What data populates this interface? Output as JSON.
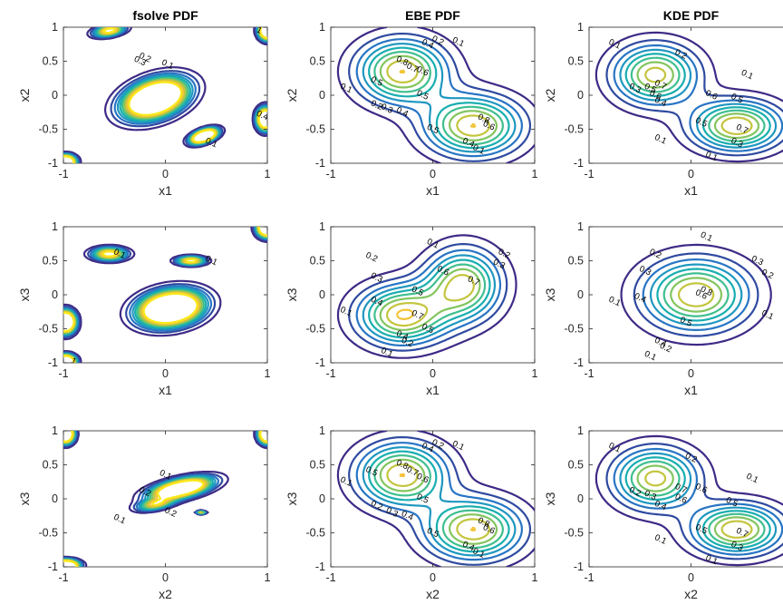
{
  "colors": {
    "levels": [
      "#3e2a86",
      "#2f4aa0",
      "#2875c4",
      "#1f97c0",
      "#18aeb0",
      "#3fbf8f",
      "#83c55f",
      "#c4c53e",
      "#f3c43a",
      "#f9e91a"
    ]
  },
  "chart_data": [
    {
      "type": "contour",
      "title": "fsolve PDF",
      "xlabel": "x1",
      "ylabel": "x2",
      "xlim": [
        -1,
        1
      ],
      "ylim": [
        -1,
        1
      ],
      "xticks": [
        "-1",
        "0",
        "1"
      ],
      "yticks": [
        "1",
        "0.5",
        "0",
        "-0.5",
        "-1"
      ],
      "sources": [
        {
          "x": -0.1,
          "y": -0.05,
          "sx": 0.22,
          "sy": 0.15,
          "a": 2.4,
          "rot": 0.7
        },
        {
          "x": -0.55,
          "y": 0.95,
          "sx": 0.1,
          "sy": 0.05,
          "a": 1.2,
          "rot": 0.3
        },
        {
          "x": 0.38,
          "y": -0.6,
          "sx": 0.09,
          "sy": 0.05,
          "a": 2.5,
          "rot": 0.6
        },
        {
          "x": 0.98,
          "y": -0.35,
          "sx": 0.05,
          "sy": 0.1,
          "a": 2.2,
          "rot": 0
        },
        {
          "x": -0.98,
          "y": -0.98,
          "sx": 0.06,
          "sy": 0.06,
          "a": 2.5,
          "rot": 0
        },
        {
          "x": 1.0,
          "y": 0.95,
          "sx": 0.05,
          "sy": 0.08,
          "a": 2.5,
          "rot": 0
        }
      ],
      "levels": [
        0.1,
        0.2,
        0.3,
        0.4,
        0.5,
        0.6,
        0.7,
        0.8,
        0.9,
        1
      ],
      "contour_labels": [
        {
          "t": "0.1",
          "x": 0.02,
          "y": 0.45
        },
        {
          "t": "0.2",
          "x": -0.2,
          "y": 0.55
        },
        {
          "t": "0.3",
          "x": -0.25,
          "y": 0.5
        },
        {
          "t": "1",
          "x": 0.92,
          "y": 0.95
        },
        {
          "t": "0.1",
          "x": 0.45,
          "y": -0.7
        },
        {
          "t": "0.4",
          "x": 0.95,
          "y": -0.3
        }
      ]
    },
    {
      "type": "contour",
      "title": "EBE PDF",
      "xlabel": "x1",
      "ylabel": "x2",
      "xlim": [
        -1,
        1
      ],
      "ylim": [
        -1,
        1
      ],
      "xticks": [
        "-1",
        "0",
        "1"
      ],
      "yticks": [
        "1",
        "0.5",
        "0",
        "-0.5",
        "-1"
      ],
      "sources": [
        {
          "x": -0.3,
          "y": 0.35,
          "sx": 0.3,
          "sy": 0.32,
          "a": 0.9,
          "rot": 0
        },
        {
          "x": 0.4,
          "y": -0.45,
          "sx": 0.32,
          "sy": 0.3,
          "a": 0.9,
          "rot": 0
        }
      ],
      "levels": [
        0.1,
        0.2,
        0.3,
        0.4,
        0.5,
        0.6,
        0.7,
        0.8,
        0.9
      ],
      "contour_labels": [
        {
          "t": "0.1",
          "x": -0.85,
          "y": 0.1
        },
        {
          "t": "0.2",
          "x": -0.55,
          "y": -0.15
        },
        {
          "t": "0.3",
          "x": -0.45,
          "y": -0.2
        },
        {
          "t": "0.4",
          "x": -0.3,
          "y": -0.25
        },
        {
          "t": "0.5",
          "x": -0.1,
          "y": 0.0
        },
        {
          "t": "0.6",
          "x": -0.1,
          "y": 0.35
        },
        {
          "t": "0.7",
          "x": -0.2,
          "y": 0.4
        },
        {
          "t": "0.8",
          "x": -0.3,
          "y": 0.5
        },
        {
          "t": "0.5",
          "x": -0.55,
          "y": 0.2
        },
        {
          "t": "0.4",
          "x": -0.05,
          "y": 0.75
        },
        {
          "t": "0.2",
          "x": 0.05,
          "y": 0.8
        },
        {
          "t": "0.1",
          "x": 0.25,
          "y": 0.78
        },
        {
          "t": "0.5",
          "x": 0.0,
          "y": -0.5
        },
        {
          "t": "0.8",
          "x": 0.5,
          "y": -0.35
        },
        {
          "t": "0.6",
          "x": 0.55,
          "y": -0.45
        },
        {
          "t": "0.4",
          "x": 0.35,
          "y": -0.7
        },
        {
          "t": "0.1",
          "x": 0.45,
          "y": -0.8
        }
      ]
    },
    {
      "type": "contour",
      "title": "KDE PDF",
      "xlabel": "x1",
      "ylabel": "x2",
      "xlim": [
        -1,
        1
      ],
      "ylim": [
        -1,
        1
      ],
      "xticks": [
        "-1",
        "0",
        "1"
      ],
      "yticks": [
        "1",
        "0.5",
        "0",
        "-0.5",
        "-1"
      ],
      "sources": [
        {
          "x": -0.35,
          "y": 0.3,
          "sx": 0.28,
          "sy": 0.3,
          "a": 0.85,
          "rot": 0
        },
        {
          "x": 0.45,
          "y": -0.45,
          "sx": 0.3,
          "sy": 0.25,
          "a": 0.9,
          "rot": 0
        }
      ],
      "levels": [
        0.1,
        0.2,
        0.3,
        0.4,
        0.5,
        0.6,
        0.7,
        0.8,
        0.9
      ],
      "contour_labels": [
        {
          "t": "0.1",
          "x": -0.75,
          "y": 0.75
        },
        {
          "t": "0.3",
          "x": -0.55,
          "y": 0.1
        },
        {
          "t": "0.5",
          "x": -0.4,
          "y": 0.1
        },
        {
          "t": "0.4",
          "x": -0.3,
          "y": -0.1
        },
        {
          "t": "0.6",
          "x": -0.35,
          "y": 0.0
        },
        {
          "t": "0.7",
          "x": -0.3,
          "y": 0.15
        },
        {
          "t": "0.6",
          "x": 0.2,
          "y": 0.0
        },
        {
          "t": "0.5",
          "x": 0.45,
          "y": -0.05
        },
        {
          "t": "0.5",
          "x": 0.1,
          "y": -0.4
        },
        {
          "t": "0.1",
          "x": 0.55,
          "y": 0.3
        },
        {
          "t": "0.2",
          "x": -0.1,
          "y": 0.6
        },
        {
          "t": "0.1",
          "x": -0.3,
          "y": -0.65
        },
        {
          "t": "0.7",
          "x": 0.5,
          "y": -0.5
        },
        {
          "t": "0.3",
          "x": 0.45,
          "y": -0.7
        },
        {
          "t": "0.1",
          "x": 0.2,
          "y": -0.9
        }
      ]
    },
    {
      "type": "contour",
      "title": "",
      "xlabel": "x1",
      "ylabel": "x3",
      "xlim": [
        -1,
        1
      ],
      "ylim": [
        -1,
        1
      ],
      "xticks": [
        "-1",
        "0",
        "1"
      ],
      "yticks": [
        "1",
        "0.5",
        "0",
        "-0.5",
        "-1"
      ],
      "sources": [
        {
          "x": 0.05,
          "y": -0.2,
          "sx": 0.2,
          "sy": 0.15,
          "a": 2.5,
          "rot": 0.4
        },
        {
          "x": -0.55,
          "y": 0.6,
          "sx": 0.11,
          "sy": 0.06,
          "a": 1.2,
          "rot": 0
        },
        {
          "x": 0.25,
          "y": 0.5,
          "sx": 0.09,
          "sy": 0.04,
          "a": 1.2,
          "rot": 0
        },
        {
          "x": -0.98,
          "y": -0.4,
          "sx": 0.06,
          "sy": 0.1,
          "a": 2.5,
          "rot": 0
        },
        {
          "x": -0.98,
          "y": -0.98,
          "sx": 0.06,
          "sy": 0.06,
          "a": 2.5,
          "rot": 0
        },
        {
          "x": 1.0,
          "y": 0.98,
          "sx": 0.06,
          "sy": 0.08,
          "a": 2.5,
          "rot": 0
        }
      ],
      "levels": [
        0.1,
        0.2,
        0.3,
        0.4,
        0.5,
        0.6,
        0.7,
        0.8,
        0.9,
        1
      ],
      "contour_labels": [
        {
          "t": "0.1",
          "x": -0.45,
          "y": 0.6
        },
        {
          "t": "0.1",
          "x": 0.45,
          "y": 0.5
        },
        {
          "t": "1",
          "x": -0.9,
          "y": -0.98
        }
      ]
    },
    {
      "type": "contour",
      "title": "",
      "xlabel": "x1",
      "ylabel": "x3",
      "xlim": [
        -1,
        1
      ],
      "ylim": [
        -1,
        1
      ],
      "xticks": [
        "-1",
        "0",
        "1"
      ],
      "yticks": [
        "1",
        "0.5",
        "0",
        "-0.5",
        "-1"
      ],
      "sources": [
        {
          "x": -0.3,
          "y": -0.3,
          "sx": 0.3,
          "sy": 0.3,
          "a": 0.9,
          "rot": 0
        },
        {
          "x": 0.3,
          "y": 0.15,
          "sx": 0.25,
          "sy": 0.35,
          "a": 0.85,
          "rot": 0
        }
      ],
      "levels": [
        0.1,
        0.2,
        0.3,
        0.4,
        0.5,
        0.6,
        0.7,
        0.8,
        0.9
      ],
      "contour_labels": [
        {
          "t": "0.1",
          "x": 0.0,
          "y": 0.75
        },
        {
          "t": "0.2",
          "x": -0.6,
          "y": 0.55
        },
        {
          "t": "0.3",
          "x": -0.55,
          "y": 0.25
        },
        {
          "t": "0.4",
          "x": -0.55,
          "y": -0.1
        },
        {
          "t": "0.1",
          "x": -0.85,
          "y": -0.25
        },
        {
          "t": "0.5",
          "x": -0.15,
          "y": 0.05
        },
        {
          "t": "0.6",
          "x": 0.1,
          "y": 0.35
        },
        {
          "t": "0.7",
          "x": 0.4,
          "y": 0.2
        },
        {
          "t": "0.7",
          "x": -0.15,
          "y": -0.3
        },
        {
          "t": "0.5",
          "x": -0.05,
          "y": -0.5
        },
        {
          "t": "0.4",
          "x": -0.3,
          "y": -0.6
        },
        {
          "t": "0.2",
          "x": -0.25,
          "y": -0.7
        },
        {
          "t": "0.1",
          "x": -0.45,
          "y": -0.85
        },
        {
          "t": "0.3",
          "x": 0.65,
          "y": 0.45
        },
        {
          "t": "0.2",
          "x": 0.7,
          "y": 0.6
        }
      ]
    },
    {
      "type": "contour",
      "title": "",
      "xlabel": "x1",
      "ylabel": "x3",
      "xlim": [
        -1,
        1
      ],
      "ylim": [
        -1,
        1
      ],
      "xticks": [
        "-1",
        "0",
        "1"
      ],
      "yticks": [
        "1",
        "0.5",
        "0",
        "-0.5",
        "-1"
      ],
      "sources": [
        {
          "x": 0.05,
          "y": 0.0,
          "sx": 0.35,
          "sy": 0.35,
          "a": 0.9,
          "rot": 0.6
        }
      ],
      "levels": [
        0.1,
        0.2,
        0.3,
        0.4,
        0.5,
        0.6,
        0.7,
        0.8,
        0.9
      ],
      "contour_labels": [
        {
          "t": "0.1",
          "x": 0.15,
          "y": 0.85
        },
        {
          "t": "0.2",
          "x": -0.35,
          "y": 0.6
        },
        {
          "t": "0.3",
          "x": -0.45,
          "y": 0.35
        },
        {
          "t": "0.4",
          "x": -0.5,
          "y": -0.05
        },
        {
          "t": "0.1",
          "x": -0.75,
          "y": -0.1
        },
        {
          "t": "0.5",
          "x": -0.05,
          "y": -0.4
        },
        {
          "t": "0.6",
          "x": 0.1,
          "y": 0.0
        },
        {
          "t": "0.8",
          "x": 0.15,
          "y": 0.05
        },
        {
          "t": "0.4",
          "x": -0.3,
          "y": -0.7
        },
        {
          "t": "0.2",
          "x": -0.25,
          "y": -0.78
        },
        {
          "t": "0.1",
          "x": -0.4,
          "y": -0.9
        },
        {
          "t": "0.3",
          "x": 0.65,
          "y": 0.5
        },
        {
          "t": "0.2",
          "x": 0.75,
          "y": 0.3
        },
        {
          "t": "0.1",
          "x": 0.75,
          "y": -0.3
        }
      ]
    },
    {
      "type": "contour",
      "title": "",
      "xlabel": "x2",
      "ylabel": "x3",
      "xlim": [
        -1,
        1
      ],
      "ylim": [
        -1,
        1
      ],
      "xticks": [
        "-1",
        "0",
        "1"
      ],
      "yticks": [
        "1",
        "0.5",
        "0",
        "-0.5",
        "-1"
      ],
      "sources": [
        {
          "x": 0.15,
          "y": 0.15,
          "sx": 0.2,
          "sy": 0.08,
          "a": 2.0,
          "rot": 0.35
        },
        {
          "x": -0.1,
          "y": -0.08,
          "sx": 0.12,
          "sy": 0.05,
          "a": 0.9,
          "rot": 0.3
        },
        {
          "x": 0.35,
          "y": -0.2,
          "sx": 0.03,
          "sy": 0.015,
          "a": 0.9,
          "rot": 0
        },
        {
          "x": -0.98,
          "y": 0.95,
          "sx": 0.05,
          "sy": 0.08,
          "a": 2.5,
          "rot": 0
        },
        {
          "x": 1.0,
          "y": 0.95,
          "sx": 0.05,
          "sy": 0.08,
          "a": 2.5,
          "rot": 0
        },
        {
          "x": -0.98,
          "y": -0.98,
          "sx": 0.08,
          "sy": 0.05,
          "a": 2.5,
          "rot": 0
        }
      ],
      "levels": [
        0.1,
        0.2,
        0.3,
        0.4,
        0.5,
        0.6,
        0.7,
        0.8,
        0.9,
        1
      ],
      "contour_labels": [
        {
          "t": "0.1",
          "x": 0.0,
          "y": 0.35
        },
        {
          "t": "0.2",
          "x": -0.2,
          "y": 0.1
        },
        {
          "t": "0.1",
          "x": -0.45,
          "y": -0.3
        },
        {
          "t": "0.2",
          "x": 0.05,
          "y": -0.2
        }
      ]
    },
    {
      "type": "contour",
      "title": "",
      "xlabel": "x2",
      "ylabel": "x3",
      "xlim": [
        -1,
        1
      ],
      "ylim": [
        -1,
        1
      ],
      "xticks": [
        "-1",
        "0",
        "1"
      ],
      "yticks": [
        "1",
        "0.5",
        "0",
        "-0.5",
        "-1"
      ],
      "sources": [
        {
          "x": -0.3,
          "y": 0.35,
          "sx": 0.3,
          "sy": 0.32,
          "a": 0.9,
          "rot": 0
        },
        {
          "x": 0.4,
          "y": -0.45,
          "sx": 0.32,
          "sy": 0.3,
          "a": 0.9,
          "rot": 0
        }
      ],
      "levels": [
        0.1,
        0.2,
        0.3,
        0.4,
        0.5,
        0.6,
        0.7,
        0.8,
        0.9
      ],
      "contour_labels": [
        {
          "t": "0.1",
          "x": -0.85,
          "y": 0.25
        },
        {
          "t": "0.5",
          "x": -0.6,
          "y": 0.4
        },
        {
          "t": "0.2",
          "x": -0.55,
          "y": -0.1
        },
        {
          "t": "0.3",
          "x": -0.4,
          "y": -0.2
        },
        {
          "t": "0.4",
          "x": -0.25,
          "y": -0.25
        },
        {
          "t": "0.5",
          "x": -0.1,
          "y": 0.0
        },
        {
          "t": "0.6",
          "x": -0.1,
          "y": 0.3
        },
        {
          "t": "0.7",
          "x": -0.2,
          "y": 0.4
        },
        {
          "t": "0.8",
          "x": -0.3,
          "y": 0.5
        },
        {
          "t": "0.4",
          "x": -0.05,
          "y": 0.75
        },
        {
          "t": "0.2",
          "x": 0.05,
          "y": 0.8
        },
        {
          "t": "0.1",
          "x": 0.25,
          "y": 0.78
        },
        {
          "t": "0.5",
          "x": 0.0,
          "y": -0.5
        },
        {
          "t": "0.8",
          "x": 0.5,
          "y": -0.35
        },
        {
          "t": "0.6",
          "x": 0.55,
          "y": -0.45
        },
        {
          "t": "0.4",
          "x": 0.35,
          "y": -0.7
        },
        {
          "t": "0.1",
          "x": 0.45,
          "y": -0.8
        }
      ]
    },
    {
      "type": "contour",
      "title": "",
      "xlabel": "x2",
      "ylabel": "x3",
      "xlim": [
        -1,
        1
      ],
      "ylim": [
        -1,
        1
      ],
      "xticks": [
        "-1",
        "0",
        "1"
      ],
      "yticks": [
        "1",
        "0.5",
        "0",
        "-0.5",
        "-1"
      ],
      "sources": [
        {
          "x": -0.35,
          "y": 0.3,
          "sx": 0.28,
          "sy": 0.3,
          "a": 0.85,
          "rot": 0
        },
        {
          "x": 0.45,
          "y": -0.45,
          "sx": 0.3,
          "sy": 0.25,
          "a": 0.9,
          "rot": 0
        }
      ],
      "levels": [
        0.1,
        0.2,
        0.3,
        0.4,
        0.5,
        0.6,
        0.7,
        0.8,
        0.9
      ],
      "contour_labels": [
        {
          "t": "0.1",
          "x": -0.75,
          "y": 0.75
        },
        {
          "t": "0.2",
          "x": -0.55,
          "y": 0.1
        },
        {
          "t": "0.3",
          "x": -0.4,
          "y": 0.05
        },
        {
          "t": "0.4",
          "x": -0.3,
          "y": -0.1
        },
        {
          "t": "0.6",
          "x": -0.1,
          "y": 0.0
        },
        {
          "t": "0.7",
          "x": -0.1,
          "y": 0.15
        },
        {
          "t": "0.6",
          "x": 0.1,
          "y": 0.15
        },
        {
          "t": "0.5",
          "x": 0.4,
          "y": -0.05
        },
        {
          "t": "0.5",
          "x": 0.1,
          "y": -0.45
        },
        {
          "t": "0.1",
          "x": 0.6,
          "y": 0.3
        },
        {
          "t": "0.2",
          "x": 0.0,
          "y": 0.6
        },
        {
          "t": "0.1",
          "x": -0.3,
          "y": -0.6
        },
        {
          "t": "0.7",
          "x": 0.5,
          "y": -0.5
        },
        {
          "t": "0.3",
          "x": 0.45,
          "y": -0.7
        },
        {
          "t": "0.1",
          "x": 0.2,
          "y": -0.9
        }
      ]
    }
  ]
}
